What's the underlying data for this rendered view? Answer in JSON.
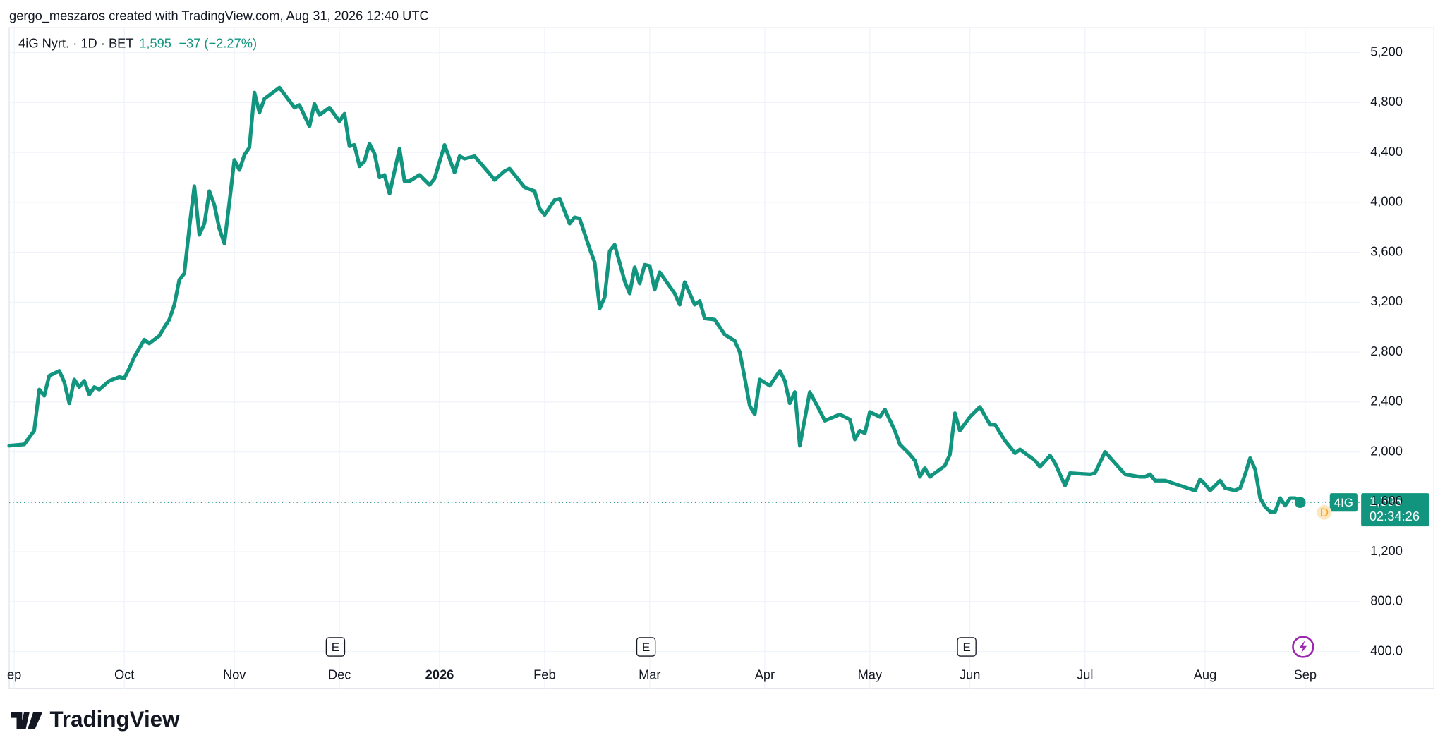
{
  "header": "gergo_meszaros created with TradingView.com, Aug 31, 2026 12:40 UTC",
  "chart_data": {
    "type": "line",
    "legend": {
      "symbol": "4iG Nyrt. · 1D · BET",
      "price": "1,595",
      "change": "−37 (−2.27%)"
    },
    "series": [
      {
        "name": "4IG",
        "color": "#12957f",
        "x": [
          0,
          3,
          5,
          6,
          7,
          8,
          10,
          11,
          12,
          13,
          14,
          15,
          16,
          17,
          18,
          20,
          22,
          23,
          24,
          25,
          27,
          28,
          30,
          31,
          32,
          33,
          34,
          35,
          36,
          37,
          38,
          39,
          40,
          41,
          42,
          43,
          44,
          45,
          46,
          47,
          48,
          49,
          50,
          51,
          54,
          57,
          58,
          60,
          61,
          62,
          64,
          66,
          67,
          68,
          69,
          70,
          71,
          72,
          73,
          74,
          75,
          76,
          78,
          79,
          80,
          82,
          84,
          85,
          87,
          89,
          90,
          91,
          93,
          96,
          97,
          99,
          100,
          103,
          105,
          106,
          107,
          109,
          110,
          112,
          113,
          114,
          116,
          117,
          118,
          119,
          120,
          121,
          123,
          124,
          125,
          126,
          127,
          128,
          129,
          130,
          133,
          134,
          135,
          137,
          138,
          139,
          141,
          143,
          145,
          146,
          147,
          148,
          149,
          150,
          152,
          154,
          155,
          156,
          157,
          158,
          160,
          162,
          163,
          166,
          168,
          169,
          170,
          171,
          172,
          174,
          175,
          177,
          178,
          180,
          181,
          182,
          183,
          184,
          187,
          188,
          189,
          190,
          192,
          194,
          196,
          197,
          199,
          201,
          202,
          205,
          206,
          208,
          209,
          211,
          212,
          216,
          217,
          219,
          221,
          223,
          226,
          227,
          228,
          229,
          231,
          234,
          237,
          238,
          239,
          240,
          242,
          243,
          245,
          246,
          247,
          248,
          249,
          250,
          251,
          252,
          253,
          254,
          255,
          256,
          257,
          258
        ],
        "values": [
          2050,
          2060,
          2170,
          2500,
          2450,
          2610,
          2650,
          2560,
          2390,
          2580,
          2520,
          2570,
          2460,
          2520,
          2500,
          2570,
          2600,
          2590,
          2670,
          2760,
          2900,
          2870,
          2930,
          3000,
          3060,
          3180,
          3380,
          3430,
          3800,
          4130,
          3740,
          3830,
          4090,
          3980,
          3790,
          3670,
          4000,
          4340,
          4260,
          4380,
          4440,
          4880,
          4720,
          4830,
          4920,
          4760,
          4780,
          4610,
          4790,
          4700,
          4760,
          4650,
          4710,
          4450,
          4460,
          4290,
          4330,
          4470,
          4390,
          4200,
          4220,
          4070,
          4430,
          4170,
          4170,
          4220,
          4140,
          4190,
          4460,
          4240,
          4370,
          4350,
          4370,
          4230,
          4180,
          4250,
          4270,
          4120,
          4090,
          3950,
          3900,
          4020,
          4030,
          3830,
          3880,
          3870,
          3630,
          3520,
          3150,
          3240,
          3610,
          3660,
          3370,
          3270,
          3480,
          3350,
          3500,
          3490,
          3300,
          3440,
          3270,
          3180,
          3360,
          3180,
          3210,
          3070,
          3060,
          2940,
          2890,
          2800,
          2590,
          2370,
          2300,
          2580,
          2530,
          2650,
          2570,
          2390,
          2480,
          2050,
          2480,
          2330,
          2250,
          2300,
          2260,
          2100,
          2170,
          2150,
          2320,
          2280,
          2340,
          2170,
          2060,
          1980,
          1930,
          1800,
          1870,
          1800,
          1890,
          1980,
          2310,
          2170,
          2280,
          2360,
          2220,
          2220,
          2090,
          1990,
          2020,
          1930,
          1880,
          1970,
          1910,
          1730,
          1830,
          1820,
          1830,
          2000,
          1910,
          1820,
          1800,
          1800,
          1820,
          1770,
          1770,
          1730,
          1690,
          1780,
          1740,
          1690,
          1770,
          1710,
          1690,
          1710,
          1820,
          1950,
          1860,
          1630,
          1560,
          1520,
          1520,
          1630,
          1570,
          1630,
          1630,
          1595
        ]
      }
    ],
    "xlim": [
      0,
      270
    ],
    "xticks": [
      {
        "value": 1,
        "label": "ep"
      },
      {
        "value": 23,
        "label": "Oct"
      },
      {
        "value": 45,
        "label": "Nov"
      },
      {
        "value": 66,
        "label": "Dec"
      },
      {
        "value": 86,
        "label": "2026"
      },
      {
        "value": 107,
        "label": "Feb"
      },
      {
        "value": 128,
        "label": "Mar"
      },
      {
        "value": 151,
        "label": "Apr"
      },
      {
        "value": 172,
        "label": "May"
      },
      {
        "value": 192,
        "label": "Jun"
      },
      {
        "value": 215,
        "label": "Jul"
      },
      {
        "value": 239,
        "label": "Aug"
      },
      {
        "value": 259,
        "label": "Sep"
      }
    ],
    "ylim": [
      304,
      5400
    ],
    "yticks": [
      {
        "value": 400,
        "label": "400.0"
      },
      {
        "value": 800,
        "label": "800.0"
      },
      {
        "value": 1200,
        "label": "1,200"
      },
      {
        "value": 1600,
        "label": "1,600"
      },
      {
        "value": 2000,
        "label": "2,000"
      },
      {
        "value": 2400,
        "label": "2,400"
      },
      {
        "value": 2800,
        "label": "2,800"
      },
      {
        "value": 3200,
        "label": "3,200"
      },
      {
        "value": 3600,
        "label": "3,600"
      },
      {
        "value": 4000,
        "label": "4,000"
      },
      {
        "value": 4400,
        "label": "4,400"
      },
      {
        "value": 4800,
        "label": "4,800"
      },
      {
        "value": 5200,
        "label": "5,200"
      }
    ],
    "grid": true,
    "price_tag": {
      "symbol": "4IG",
      "price": "1,595",
      "countdown": "02:34:26"
    },
    "event_markers": [
      "E",
      "E",
      "E"
    ],
    "dividend_marker": "D"
  },
  "footer": "TradingView"
}
